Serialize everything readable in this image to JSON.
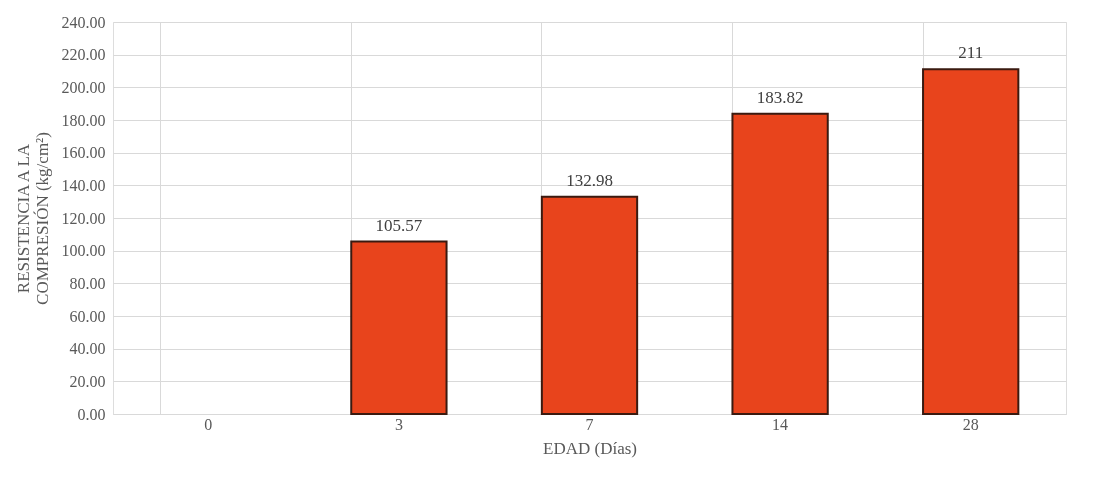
{
  "chart_data": {
    "type": "bar",
    "categories": [
      "0",
      "3",
      "7",
      "14",
      "28"
    ],
    "values": [
      null,
      105.57,
      132.98,
      183.82,
      211
    ],
    "value_labels": [
      null,
      "105.57",
      "132.98",
      "183.82",
      "211"
    ],
    "color": "#e8441c",
    "xlabel": "EDAD (Días)",
    "ylabel": "RESISTENCIA A LA COMPRESIÓN (kg/cm²)",
    "ylim": [
      0,
      240
    ],
    "yticks": [
      {
        "value": 0,
        "label": "0.00"
      },
      {
        "value": 20,
        "label": "20.00"
      },
      {
        "value": 40,
        "label": "40.00"
      },
      {
        "value": 60,
        "label": "60.00"
      },
      {
        "value": 80,
        "label": "80.00"
      },
      {
        "value": 100,
        "label": "100.00"
      },
      {
        "value": 120,
        "label": "120.00"
      },
      {
        "value": 140,
        "label": "140.00"
      },
      {
        "value": 160,
        "label": "160.00"
      },
      {
        "value": 180,
        "label": "180.00"
      },
      {
        "value": 200,
        "label": "200.00"
      },
      {
        "value": 220,
        "label": "220.00"
      },
      {
        "value": 240,
        "label": "240.00"
      }
    ],
    "grid": true
  }
}
